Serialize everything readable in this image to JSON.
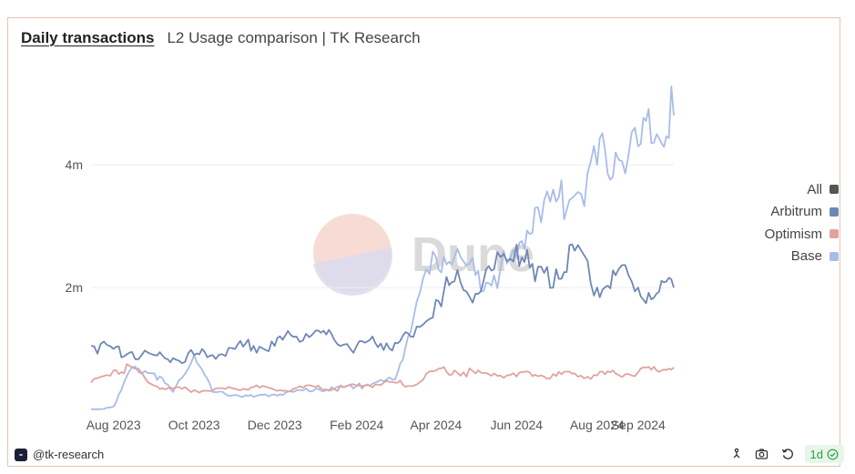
{
  "header": {
    "title": "Daily transactions",
    "subtitle": "L2 Usage comparison | TK Research"
  },
  "watermark": "Dune",
  "footer": {
    "author": "@tk-research",
    "refresh_label": "1d"
  },
  "icons": {
    "fork": "fork-icon",
    "camera": "camera-icon",
    "refresh": "refresh-icon",
    "check": "check-circle-icon"
  },
  "chart_data": {
    "type": "line",
    "xlabel": "",
    "ylabel": "",
    "x_range": [
      "2023-07-15",
      "2024-09-28"
    ],
    "ylim": [
      0,
      5500000
    ],
    "y_ticks": [
      {
        "value": 2000000,
        "label": "2m"
      },
      {
        "value": 4000000,
        "label": "4m"
      }
    ],
    "x_ticks": [
      {
        "date": "2023-08-01",
        "label": "Aug 2023"
      },
      {
        "date": "2023-10-01",
        "label": "Oct 2023"
      },
      {
        "date": "2023-12-01",
        "label": "Dec 2023"
      },
      {
        "date": "2024-02-01",
        "label": "Feb 2024"
      },
      {
        "date": "2024-04-01",
        "label": "Apr 2024"
      },
      {
        "date": "2024-06-01",
        "label": "Jun 2024"
      },
      {
        "date": "2024-08-01",
        "label": "Aug 2024"
      },
      {
        "date": "2024-09-01",
        "label": "Sep 2024"
      }
    ],
    "legend": {
      "placement": "right",
      "entries": [
        {
          "name": "All",
          "color": "#555555"
        },
        {
          "name": "Arbitrum",
          "color": "#6f87b5"
        },
        {
          "name": "Optimism",
          "color": "#e0a3a0"
        },
        {
          "name": "Base",
          "color": "#a9bce8"
        }
      ]
    },
    "series": [
      {
        "name": "Base",
        "color": "#a9bce8",
        "x": [
          "2023-07-15",
          "2023-08-01",
          "2023-08-15",
          "2023-09-01",
          "2023-09-15",
          "2023-10-01",
          "2023-10-15",
          "2023-11-01",
          "2023-11-15",
          "2023-12-01",
          "2023-12-15",
          "2024-01-01",
          "2024-01-15",
          "2024-02-01",
          "2024-02-15",
          "2024-03-01",
          "2024-03-15",
          "2024-04-01",
          "2024-04-15",
          "2024-05-01",
          "2024-05-15",
          "2024-06-01",
          "2024-06-15",
          "2024-07-01",
          "2024-07-15",
          "2024-08-01",
          "2024-08-15",
          "2024-09-01",
          "2024-09-15",
          "2024-09-28"
        ],
        "y": [
          20000,
          60000,
          700000,
          600000,
          300000,
          900000,
          300000,
          250000,
          220000,
          260000,
          300000,
          350000,
          350000,
          400000,
          450000,
          500000,
          1500000,
          2500000,
          2500000,
          2200000,
          2200000,
          2500000,
          3300000,
          3400000,
          3500000,
          4000000,
          4200000,
          4300000,
          4500000,
          4800000
        ]
      },
      {
        "name": "Arbitrum",
        "color": "#6f87b5",
        "x": [
          "2023-07-15",
          "2023-08-01",
          "2023-08-15",
          "2023-09-01",
          "2023-09-15",
          "2023-10-01",
          "2023-10-15",
          "2023-11-01",
          "2023-11-15",
          "2023-12-01",
          "2023-12-15",
          "2024-01-01",
          "2024-01-15",
          "2024-02-01",
          "2024-02-15",
          "2024-03-01",
          "2024-03-15",
          "2024-04-01",
          "2024-04-15",
          "2024-05-01",
          "2024-05-15",
          "2024-06-01",
          "2024-06-15",
          "2024-07-01",
          "2024-07-15",
          "2024-08-01",
          "2024-08-15",
          "2024-09-01",
          "2024-09-15",
          "2024-09-28"
        ],
        "y": [
          1050000,
          1000000,
          950000,
          900000,
          850000,
          900000,
          900000,
          1000000,
          1050000,
          1050000,
          1200000,
          1300000,
          1150000,
          1050000,
          1100000,
          1100000,
          1200000,
          1800000,
          2100000,
          1900000,
          2300000,
          2700000,
          2100000,
          2300000,
          2600000,
          2000000,
          2200000,
          2000000,
          1900000,
          2000000
        ]
      },
      {
        "name": "Optimism",
        "color": "#e0a3a0",
        "x": [
          "2023-07-15",
          "2023-08-01",
          "2023-08-15",
          "2023-09-01",
          "2023-09-15",
          "2023-10-01",
          "2023-10-15",
          "2023-11-01",
          "2023-11-15",
          "2023-12-01",
          "2023-12-15",
          "2024-01-01",
          "2024-01-15",
          "2024-02-01",
          "2024-02-15",
          "2024-03-01",
          "2024-03-15",
          "2024-04-01",
          "2024-04-15",
          "2024-05-01",
          "2024-05-15",
          "2024-06-01",
          "2024-06-15",
          "2024-07-01",
          "2024-07-15",
          "2024-08-01",
          "2024-08-15",
          "2024-09-01",
          "2024-09-15",
          "2024-09-28"
        ],
        "y": [
          450000,
          650000,
          700000,
          400000,
          350000,
          330000,
          320000,
          350000,
          380000,
          330000,
          350000,
          380000,
          350000,
          400000,
          420000,
          450000,
          400000,
          650000,
          650000,
          600000,
          600000,
          550000,
          580000,
          560000,
          600000,
          570000,
          600000,
          620000,
          650000,
          700000
        ]
      }
    ]
  }
}
